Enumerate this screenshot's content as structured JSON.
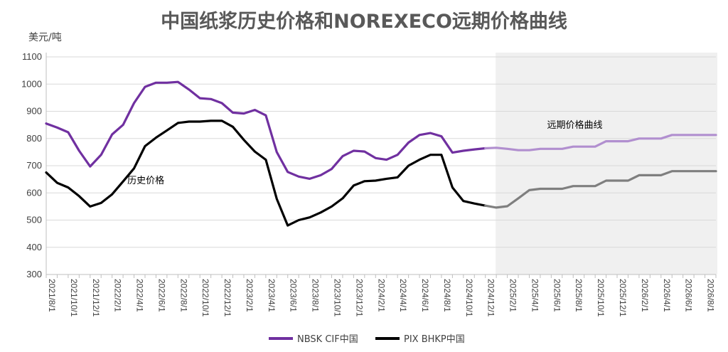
{
  "chart_data": {
    "type": "line",
    "title": "中国纸浆历史价格和NOREXECO远期价格曲线",
    "ylabel": "美元/吨",
    "ylim": [
      300,
      1100
    ],
    "yticks": [
      300,
      400,
      500,
      600,
      700,
      800,
      900,
      1000,
      1100
    ],
    "grid": true,
    "legend_position": "bottom",
    "x_tick_labels": [
      "2021/8/1",
      "2021/10/1",
      "2021/12/1",
      "2022/2/1",
      "2022/4/1",
      "2022/6/1",
      "2022/8/1",
      "2022/10/1",
      "2022/12/1",
      "2023/2/1",
      "2023/4/1",
      "2023/6/1",
      "2023/8/1",
      "2023/10/1",
      "2023/12/1",
      "2024/2/1",
      "2024/4/1",
      "2024/6/1",
      "2024/8/1",
      "2024/10/1",
      "2024/12/1",
      "2025/2/1",
      "2025/4/1",
      "2025/6/1",
      "2025/8/1",
      "2025/10/1",
      "2025/12/1",
      "2026/2/1",
      "2026/4/1",
      "2026/6/1",
      "2026/8/1"
    ],
    "x": [
      "2021/8/1",
      "2021/9/1",
      "2021/10/1",
      "2021/11/1",
      "2021/12/1",
      "2022/1/1",
      "2022/2/1",
      "2022/3/1",
      "2022/4/1",
      "2022/5/1",
      "2022/6/1",
      "2022/7/1",
      "2022/8/1",
      "2022/9/1",
      "2022/10/1",
      "2022/11/1",
      "2022/12/1",
      "2023/1/1",
      "2023/2/1",
      "2023/3/1",
      "2023/4/1",
      "2023/5/1",
      "2023/6/1",
      "2023/7/1",
      "2023/8/1",
      "2023/9/1",
      "2023/10/1",
      "2023/11/1",
      "2023/12/1",
      "2024/1/1",
      "2024/2/1",
      "2024/3/1",
      "2024/4/1",
      "2024/5/1",
      "2024/6/1",
      "2024/7/1",
      "2024/8/1",
      "2024/9/1",
      "2024/10/1",
      "2024/11/1",
      "2024/12/1",
      "2025/1/1",
      "2025/2/1",
      "2025/3/1",
      "2025/4/1",
      "2025/5/1",
      "2025/6/1",
      "2025/7/1",
      "2025/8/1",
      "2025/9/1",
      "2025/10/1",
      "2025/11/1",
      "2025/12/1",
      "2026/1/1",
      "2026/2/1",
      "2026/3/1",
      "2026/4/1",
      "2026/5/1",
      "2026/6/1",
      "2026/7/1",
      "2026/8/1",
      "2026/9/1"
    ],
    "forecast_start": "2025/1/1",
    "series": [
      {
        "name": "NBSK CIF中国",
        "color": "#7030a0",
        "forecast_color": "#b18fcf",
        "values": [
          855,
          840,
          823,
          755,
          697,
          740,
          815,
          850,
          930,
          990,
          1005,
          1005,
          1008,
          980,
          948,
          945,
          930,
          895,
          892,
          905,
          885,
          750,
          677,
          660,
          652,
          665,
          688,
          735,
          755,
          752,
          728,
          722,
          740,
          785,
          813,
          820,
          808,
          748,
          755,
          760,
          764,
          766,
          762,
          757,
          757,
          762,
          762,
          762,
          770,
          770,
          770,
          790,
          790,
          790,
          800,
          800,
          800,
          813,
          813,
          813,
          813,
          813
        ]
      },
      {
        "name": "PIX BHKP中国",
        "color": "#000000",
        "forecast_color": "#7f7f7f",
        "values": [
          675,
          637,
          620,
          588,
          550,
          563,
          595,
          642,
          690,
          772,
          803,
          830,
          857,
          862,
          862,
          865,
          865,
          843,
          795,
          752,
          722,
          578,
          480,
          500,
          510,
          528,
          550,
          580,
          627,
          643,
          645,
          652,
          657,
          700,
          722,
          740,
          740,
          620,
          570,
          561,
          553,
          546,
          551,
          580,
          610,
          615,
          615,
          615,
          625,
          625,
          625,
          645,
          645,
          645,
          665,
          665,
          665,
          680,
          680,
          680,
          680,
          680
        ]
      }
    ],
    "annotations": [
      "历史价格",
      "远期价格曲线"
    ]
  }
}
